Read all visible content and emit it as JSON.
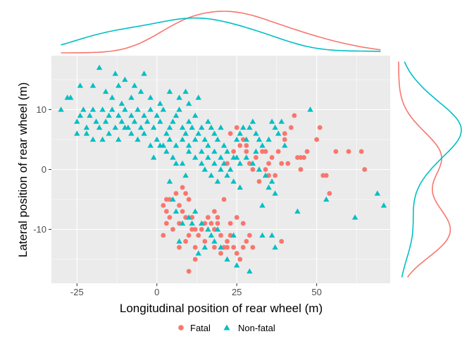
{
  "chart_data": {
    "type": "scatter",
    "xlabel": "Longitudinal position of rear wheel (m)",
    "ylabel": "Lateral position of rear wheel (m)",
    "xlim": [
      -33,
      73
    ],
    "ylim": [
      -19,
      19
    ],
    "x_ticks": [
      -25,
      0,
      25,
      50
    ],
    "x_tick_labels": [
      "-25",
      "0",
      "25",
      "50"
    ],
    "y_ticks": [
      -10,
      0,
      10
    ],
    "y_tick_labels": [
      "-10",
      "0",
      "10"
    ],
    "grid": true,
    "legend_position": "bottom",
    "marginal_density": {
      "top": "density of longitudinal position by group",
      "right": "density of lateral position by group"
    },
    "series": [
      {
        "name": "Fatal",
        "label": "Fatal",
        "marker": "circle",
        "color": "#F8766D",
        "points": [
          [
            34,
            3
          ],
          [
            36,
            2
          ],
          [
            38,
            3
          ],
          [
            35,
            1
          ],
          [
            40,
            5
          ],
          [
            42,
            7
          ],
          [
            43,
            9
          ],
          [
            44,
            2
          ],
          [
            41,
            1
          ],
          [
            46,
            2
          ],
          [
            45,
            2
          ],
          [
            47,
            3
          ],
          [
            50,
            5
          ],
          [
            51,
            7
          ],
          [
            52,
            -1
          ],
          [
            53,
            -1
          ],
          [
            54,
            -4
          ],
          [
            56,
            3
          ],
          [
            60,
            3
          ],
          [
            64,
            3
          ],
          [
            65,
            0
          ],
          [
            37,
            -1
          ],
          [
            35,
            -1
          ],
          [
            34,
            0
          ],
          [
            39,
            1
          ],
          [
            40,
            6
          ],
          [
            33,
            3
          ],
          [
            31,
            2
          ],
          [
            29,
            1
          ],
          [
            28,
            4
          ],
          [
            27,
            5
          ],
          [
            25,
            7
          ],
          [
            23,
            6
          ],
          [
            24,
            3
          ],
          [
            22,
            1
          ],
          [
            26,
            4
          ],
          [
            28,
            3
          ],
          [
            30,
            0
          ],
          [
            32,
            -2
          ],
          [
            45,
            0
          ],
          [
            2,
            -6
          ],
          [
            3,
            -7
          ],
          [
            4,
            -5
          ],
          [
            6,
            -4
          ],
          [
            7,
            -6
          ],
          [
            8,
            -3
          ],
          [
            9,
            -4
          ],
          [
            10,
            -5
          ],
          [
            8,
            -7
          ],
          [
            7,
            -9
          ],
          [
            9,
            -8
          ],
          [
            11,
            -8
          ],
          [
            12,
            -10
          ],
          [
            10,
            -11
          ],
          [
            13,
            -11
          ],
          [
            14,
            -10
          ],
          [
            15,
            -9
          ],
          [
            16,
            -8
          ],
          [
            17,
            -9
          ],
          [
            18,
            -10
          ],
          [
            19,
            -9
          ],
          [
            20,
            -11
          ],
          [
            22,
            -12
          ],
          [
            24,
            -13
          ],
          [
            23,
            -11
          ],
          [
            25,
            -8
          ],
          [
            27,
            -9
          ],
          [
            28,
            -12
          ],
          [
            30,
            -13
          ],
          [
            27,
            -13
          ],
          [
            26,
            -15
          ],
          [
            25,
            -14
          ],
          [
            21,
            -13
          ],
          [
            20,
            -14
          ],
          [
            18,
            -13
          ],
          [
            15,
            -12
          ],
          [
            12,
            -13
          ],
          [
            9,
            -12
          ],
          [
            11,
            -10
          ],
          [
            12,
            -15
          ],
          [
            7,
            -13
          ],
          [
            5,
            -10
          ],
          [
            3,
            -9
          ],
          [
            2,
            -11
          ],
          [
            3,
            -5
          ],
          [
            4,
            -8
          ],
          [
            10,
            -17
          ],
          [
            18,
            -7
          ],
          [
            19,
            -8
          ],
          [
            21,
            -5
          ],
          [
            23,
            -9
          ],
          [
            22,
            -13
          ],
          [
            29,
            -11
          ],
          [
            39,
            -12
          ]
        ]
      },
      {
        "name": "Non-fatal",
        "label": "Non-fatal",
        "marker": "triangle",
        "color": "#00BFC4",
        "points": [
          [
            -30,
            10
          ],
          [
            -28,
            12
          ],
          [
            -27,
            12
          ],
          [
            -25,
            8
          ],
          [
            -24,
            9
          ],
          [
            -23,
            10
          ],
          [
            -22,
            7
          ],
          [
            -21,
            9
          ],
          [
            -20,
            10
          ],
          [
            -19,
            8
          ],
          [
            -18,
            7
          ],
          [
            -17,
            10
          ],
          [
            -16,
            8
          ],
          [
            -15,
            9
          ],
          [
            -14,
            10
          ],
          [
            -13,
            7
          ],
          [
            -12,
            9
          ],
          [
            -11,
            8
          ],
          [
            -10,
            10
          ],
          [
            -9,
            7
          ],
          [
            -8,
            9
          ],
          [
            -7,
            8
          ],
          [
            -6,
            10
          ],
          [
            -5,
            7
          ],
          [
            -4,
            9
          ],
          [
            -3,
            8
          ],
          [
            -2,
            10
          ],
          [
            -1,
            7
          ],
          [
            0,
            9
          ],
          [
            1,
            8
          ],
          [
            2,
            10
          ],
          [
            3,
            6
          ],
          [
            4,
            7
          ],
          [
            5,
            8
          ],
          [
            6,
            9
          ],
          [
            7,
            10
          ],
          [
            8,
            7
          ],
          [
            9,
            6
          ],
          [
            10,
            8
          ],
          [
            11,
            7
          ],
          [
            12,
            9
          ],
          [
            13,
            6
          ],
          [
            14,
            7
          ],
          [
            15,
            5
          ],
          [
            16,
            8
          ],
          [
            17,
            7
          ],
          [
            18,
            6
          ],
          [
            19,
            5
          ],
          [
            20,
            7
          ],
          [
            21,
            4
          ],
          [
            -25,
            6
          ],
          [
            -22,
            6
          ],
          [
            -20,
            5
          ],
          [
            -17,
            5
          ],
          [
            -15,
            6
          ],
          [
            -12,
            5
          ],
          [
            -10,
            7
          ],
          [
            -8,
            6
          ],
          [
            -6,
            5
          ],
          [
            -4,
            6
          ],
          [
            -2,
            4
          ],
          [
            0,
            5
          ],
          [
            2,
            4
          ],
          [
            4,
            5
          ],
          [
            6,
            4
          ],
          [
            8,
            5
          ],
          [
            10,
            4
          ],
          [
            12,
            5
          ],
          [
            14,
            3
          ],
          [
            16,
            4
          ],
          [
            18,
            3
          ],
          [
            20,
            2
          ],
          [
            22,
            3
          ],
          [
            24,
            2
          ],
          [
            26,
            1
          ],
          [
            10,
            3
          ],
          [
            12,
            2
          ],
          [
            14,
            1
          ],
          [
            16,
            2
          ],
          [
            18,
            1
          ],
          [
            20,
            0
          ],
          [
            22,
            -1
          ],
          [
            24,
            -2
          ],
          [
            26,
            -3
          ],
          [
            15,
            0
          ],
          [
            17,
            -1
          ],
          [
            19,
            -2
          ],
          [
            21,
            1
          ],
          [
            23,
            0
          ],
          [
            25,
            2
          ],
          [
            -18,
            17
          ],
          [
            -13,
            16
          ],
          [
            -10,
            15
          ],
          [
            -7,
            14
          ],
          [
            -4,
            16
          ],
          [
            -12,
            14
          ],
          [
            -8,
            12
          ],
          [
            -5,
            13
          ],
          [
            -2,
            12
          ],
          [
            1,
            11
          ],
          [
            4,
            13
          ],
          [
            7,
            12
          ],
          [
            10,
            11
          ],
          [
            13,
            12
          ],
          [
            9,
            13
          ],
          [
            -11,
            11
          ],
          [
            -16,
            13
          ],
          [
            -24,
            14
          ],
          [
            -20,
            14
          ],
          [
            -14,
            12
          ],
          [
            27,
            7
          ],
          [
            28,
            5
          ],
          [
            29,
            7
          ],
          [
            30,
            8
          ],
          [
            31,
            6
          ],
          [
            32,
            5
          ],
          [
            33,
            4
          ],
          [
            35,
            5
          ],
          [
            36,
            8
          ],
          [
            37,
            7
          ],
          [
            38,
            6
          ],
          [
            39,
            8
          ],
          [
            40,
            4
          ],
          [
            34,
            -1
          ],
          [
            35,
            -3
          ],
          [
            36,
            -2
          ],
          [
            37,
            -4
          ],
          [
            33,
            -6
          ],
          [
            44,
            -7
          ],
          [
            48,
            10
          ],
          [
            53,
            -5
          ],
          [
            62,
            -8
          ],
          [
            69,
            -4
          ],
          [
            71,
            -6
          ],
          [
            25,
            5
          ],
          [
            26,
            6
          ],
          [
            28,
            2
          ],
          [
            30,
            1
          ],
          [
            32,
            0
          ],
          [
            31,
            3
          ],
          [
            4,
            -2
          ],
          [
            5,
            -5
          ],
          [
            6,
            -7
          ],
          [
            8,
            -9
          ],
          [
            10,
            -8
          ],
          [
            12,
            -7
          ],
          [
            14,
            -9
          ],
          [
            16,
            -10
          ],
          [
            18,
            -12
          ],
          [
            20,
            -13
          ],
          [
            22,
            -15
          ],
          [
            25,
            -16
          ],
          [
            29,
            -17
          ],
          [
            7,
            -12
          ],
          [
            13,
            -14
          ],
          [
            15,
            -13
          ],
          [
            11,
            -9
          ],
          [
            17,
            -11
          ],
          [
            24,
            -11
          ],
          [
            19,
            -10
          ],
          [
            33,
            -11
          ],
          [
            36,
            -11
          ],
          [
            37,
            -13
          ],
          [
            3,
            3
          ],
          [
            1,
            4
          ],
          [
            -1,
            2
          ],
          [
            5,
            2
          ],
          [
            6,
            1
          ],
          [
            8,
            1
          ],
          [
            9,
            -1
          ]
        ]
      }
    ]
  }
}
